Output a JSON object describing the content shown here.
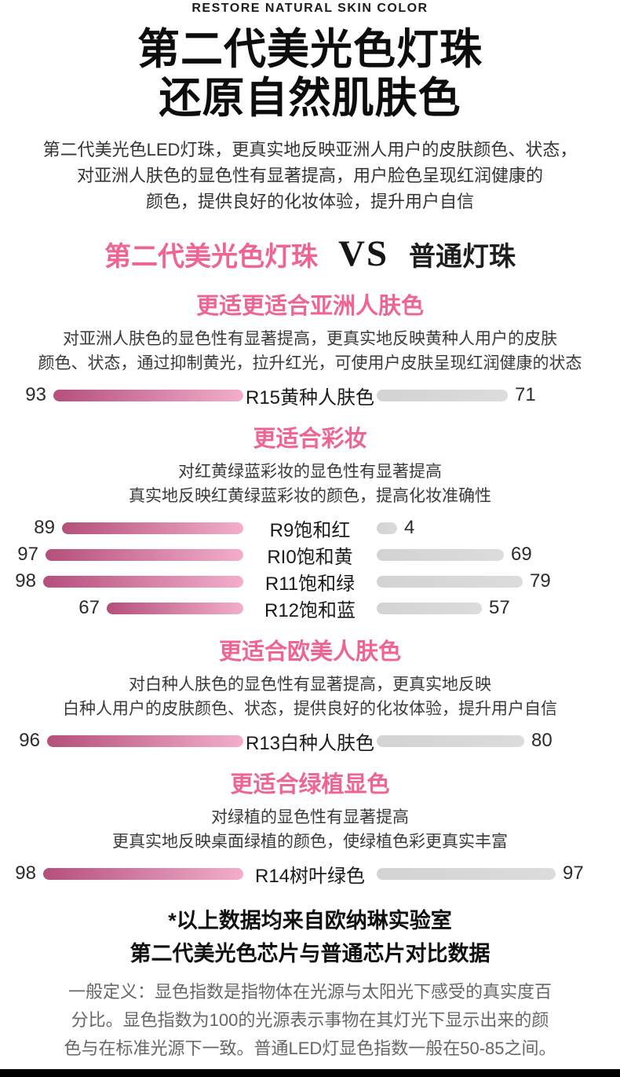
{
  "eyebrow": "RESTORE NATURAL SKIN COLOR",
  "title": {
    "line1": "第二代美光色灯珠",
    "line2": "还原自然肌肤色"
  },
  "intro": [
    "第二代美光色LED灯珠，更真实地反映亚洲人用户的皮肤颜色、状态，",
    "对亚洲人肤色的显色性有显著提高，用户脸色呈现红润健康的",
    "颜色，提供良好的化妆体验，提升用户自信"
  ],
  "vs": {
    "left": "第二代美光色灯珠",
    "mid": "VS",
    "right": "普通灯珠"
  },
  "sections": [
    {
      "heading": "更适更适合亚洲人肤色",
      "desc": [
        "对亚洲人肤色的显色性有显著提高，更真实地反映黄种人用户的皮肤",
        "颜色、状态，通过抑制黄光，拉升红光，可使用户皮肤呈现红润健康的状态"
      ],
      "rows": [
        {
          "label": "R15黄种人肤色",
          "new": 93,
          "old": 71
        }
      ]
    },
    {
      "heading": "更适合彩妆",
      "desc": [
        "对红黄绿蓝彩妆的显色性有显著提高",
        "真实地反映红黄绿蓝彩妆的颜色，提高化妆准确性"
      ],
      "rows": [
        {
          "label": "R9饱和红",
          "new": 89,
          "old": 4
        },
        {
          "label": "RI0饱和黄",
          "new": 97,
          "old": 69
        },
        {
          "label": "R11饱和绿",
          "new": 98,
          "old": 79
        },
        {
          "label": "R12饱和蓝",
          "new": 67,
          "old": 57
        }
      ]
    },
    {
      "heading": "更适合欧美人肤色",
      "desc": [
        "对白种人肤色的显色性有显著提高，更真实地反映",
        "白种人用户的皮肤颜色、状态，提供良好的化妆体验，提升用户自信"
      ],
      "rows": [
        {
          "label": "R13白种人肤色",
          "new": 96,
          "old": 80
        }
      ]
    },
    {
      "heading": "更适合绿植显色",
      "desc": [
        "对绿植的显色性有显著提高",
        "更真实地反映桌面绿植的颜色，使绿植色彩更真实丰富"
      ],
      "rows": [
        {
          "label": "R14树叶绿色",
          "new": 98,
          "old": 97
        }
      ]
    }
  ],
  "footnote": [
    "*以上数据均来自欧纳琳实验室",
    "第二代美光色芯片与普通芯片对比数据"
  ],
  "definition": [
    "一般定义：显色指数是指物体在光源与太阳光下感受的真实度百",
    "分比。显色指数为100的光源表示事物在其灯光下显示出来的颜",
    "色与在标准光源下一致。普通LED灯显色指数一般在50-85之间。"
  ],
  "colors": {
    "accent_pink": "#ee6493",
    "bar_gradient_start": "#b44f7c",
    "bar_gradient_end": "#f3aecb",
    "bar_gray": "#dcdcdc",
    "footer_black": "#000000"
  },
  "chart_data": {
    "type": "bar",
    "title": "第二代美光色灯珠 VS 普通灯珠",
    "categories": [
      "R15黄种人肤色",
      "R9饱和红",
      "RI0饱和黄",
      "R11饱和绿",
      "R12饱和蓝",
      "R13白种人肤色",
      "R14树叶绿色"
    ],
    "series": [
      {
        "name": "第二代美光色灯珠",
        "values": [
          93,
          89,
          97,
          98,
          67,
          96,
          98
        ]
      },
      {
        "name": "普通灯珠",
        "values": [
          71,
          4,
          69,
          79,
          57,
          80,
          97
        ]
      }
    ],
    "xlim": [
      0,
      100
    ],
    "legend_position": "none",
    "grid": false
  }
}
